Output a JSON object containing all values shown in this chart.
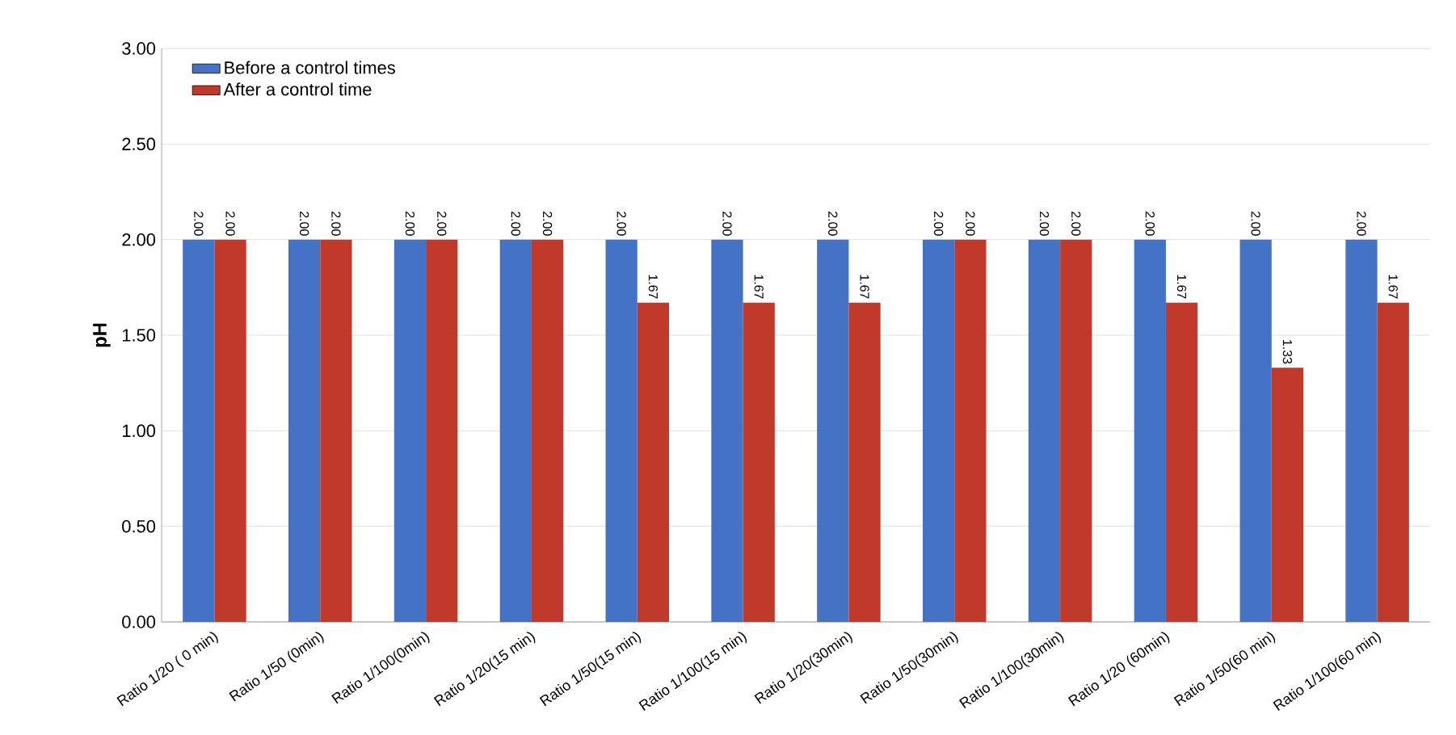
{
  "chart_data": {
    "type": "bar",
    "ylabel": "pH",
    "categories": [
      "Ratio 1/20 ( 0 min)",
      "Ratio 1/50 (0min)",
      "Ratio 1/100(0min)",
      "Ratio 1/20(15 min)",
      "Ratio 1/50(15 min)",
      "Ratio 1/100(15 min)",
      "Ratio 1/20(30min)",
      "Ratio 1/50(30min)",
      "Ratio 1/100(30min)",
      "Ratio 1/20 (60min)",
      "Ratio 1/50(60 min)",
      "Ratio 1/100(60 min)"
    ],
    "series": [
      {
        "name": "Before a control times",
        "color": "#4472c4",
        "values": [
          2,
          2,
          2,
          2,
          2,
          2,
          2,
          2,
          2,
          2,
          2,
          2
        ],
        "value_labels": [
          "2.00",
          "2.00",
          "2.00",
          "2.00",
          "2.00",
          "2.00",
          "2.00",
          "2.00",
          "2.00",
          "2.00",
          "2.00",
          "2.00"
        ]
      },
      {
        "name": "After a control time",
        "color": "#c0392b",
        "values": [
          2,
          2,
          2,
          2,
          1.67,
          1.67,
          1.67,
          2,
          2,
          1.67,
          1.33,
          1.67
        ],
        "value_labels": [
          "2.00",
          "2.00",
          "2.00",
          "2.00",
          "1.67",
          "1.67",
          "1.67",
          "2.00",
          "2.00",
          "1.67",
          "1.33",
          "1.67"
        ]
      }
    ],
    "ylim": [
      0,
      3
    ],
    "yticks": [
      {
        "value": 0,
        "label": "0.00"
      },
      {
        "value": 0.5,
        "label": "0.50"
      },
      {
        "value": 1,
        "label": "1.00"
      },
      {
        "value": 1.5,
        "label": "1.50"
      },
      {
        "value": 2,
        "label": "2.00"
      },
      {
        "value": 2.5,
        "label": "2.50"
      },
      {
        "value": 3,
        "label": "3.00"
      }
    ],
    "grid": "y",
    "legend": "top left"
  }
}
